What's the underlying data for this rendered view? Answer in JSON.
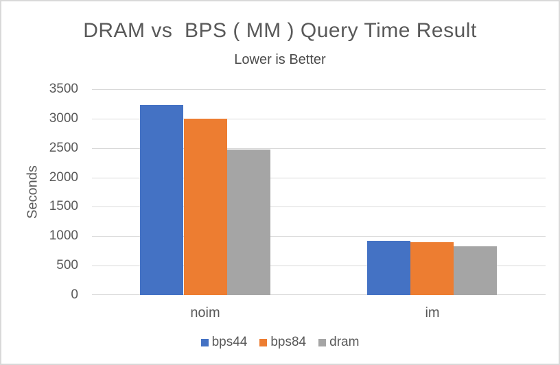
{
  "window": {
    "background": "#ffffff",
    "border_color": "#d9d9d9"
  },
  "chart_data": {
    "type": "bar",
    "title": "DRAM vs  BPS ( MM ) Query Time Result",
    "subtitle": "Lower is Better",
    "xlabel": "",
    "ylabel": "Seconds",
    "categories": [
      "noim",
      "im"
    ],
    "series": [
      {
        "name": "bps44",
        "color": "#4472C4",
        "values": [
          3230,
          920
        ]
      },
      {
        "name": "bps84",
        "color": "#ED7D31",
        "values": [
          3000,
          900
        ]
      },
      {
        "name": "dram",
        "color": "#A5A5A5",
        "values": [
          2470,
          830
        ]
      }
    ],
    "ylim": [
      0,
      3500
    ],
    "yticks": [
      0,
      500,
      1000,
      1500,
      2000,
      2500,
      3000,
      3500
    ],
    "grid": true,
    "legend_position": "bottom",
    "text_color": "#595959",
    "gridline_color": "#d9d9d9"
  }
}
